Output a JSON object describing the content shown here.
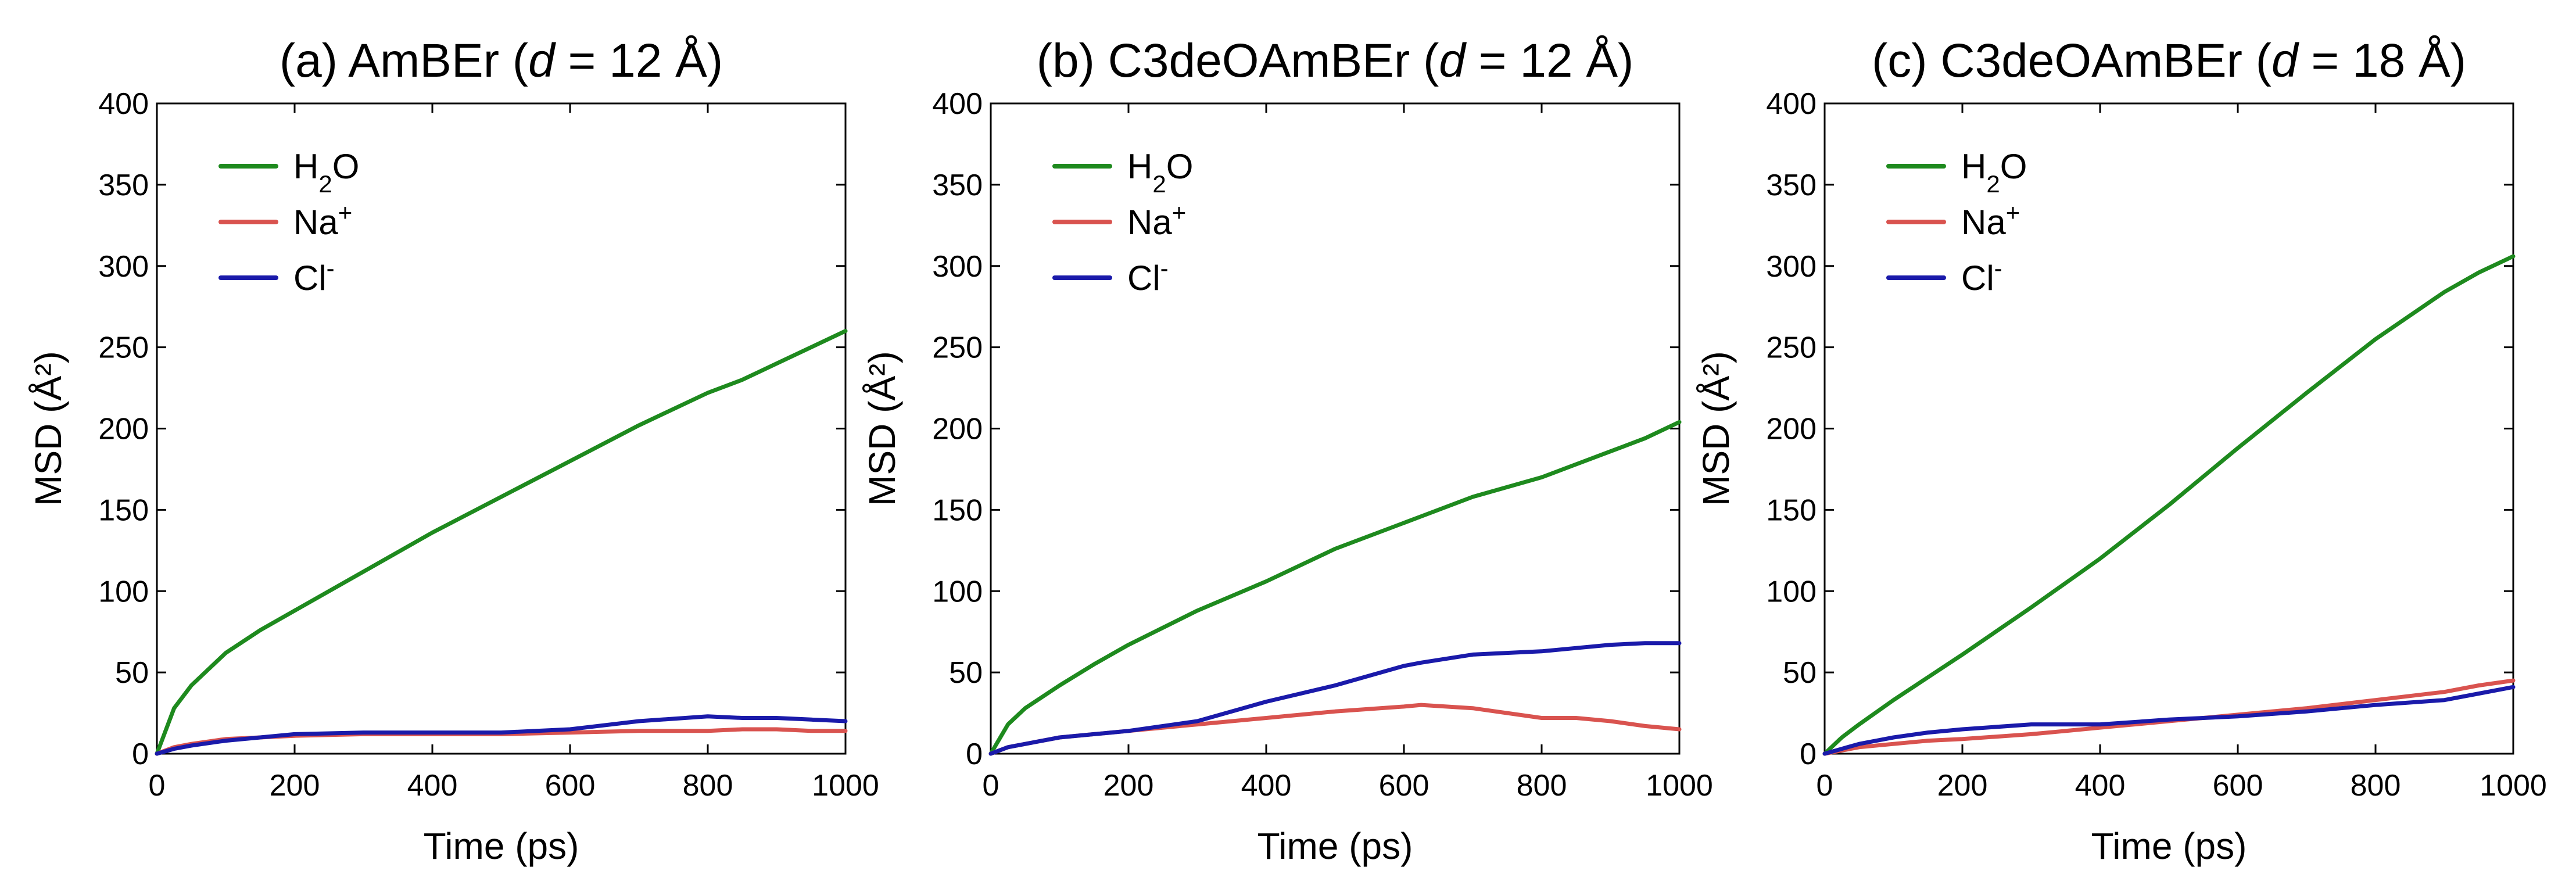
{
  "chart_data": [
    {
      "type": "line",
      "title_prefix": "(a) AmBEr (",
      "title_italic": "d",
      "title_suffix": " = 12 Å)",
      "xlabel": "Time (ps)",
      "ylabel": "MSD (Å²)",
      "xlim": [
        0,
        1000
      ],
      "ylim": [
        0,
        400
      ],
      "xticks": [
        0,
        200,
        400,
        600,
        800,
        1000
      ],
      "yticks": [
        0,
        50,
        100,
        150,
        200,
        250,
        300,
        350,
        400
      ],
      "legend_position": "top-left",
      "x": [
        0,
        25,
        50,
        100,
        150,
        200,
        300,
        400,
        500,
        600,
        700,
        800,
        850,
        900,
        950,
        1000
      ],
      "series": [
        {
          "name": "H₂O",
          "legend_main": "H",
          "legend_sub": "2",
          "legend_sup": "",
          "legend_tail": "O",
          "color": "#1e8a1e",
          "values": [
            0,
            28,
            42,
            62,
            76,
            88,
            112,
            136,
            158,
            180,
            202,
            222,
            230,
            240,
            250,
            260
          ]
        },
        {
          "name": "Na⁺",
          "legend_main": "Na",
          "legend_sub": "",
          "legend_sup": "+",
          "legend_tail": "",
          "color": "#d9534f",
          "values": [
            0,
            4,
            6,
            9,
            10,
            11,
            12,
            12,
            12,
            13,
            14,
            14,
            15,
            15,
            14,
            14
          ]
        },
        {
          "name": "Cl⁻",
          "legend_main": "Cl",
          "legend_sub": "",
          "legend_sup": "-",
          "legend_tail": "",
          "color": "#1a1aaa",
          "values": [
            0,
            3,
            5,
            8,
            10,
            12,
            13,
            13,
            13,
            15,
            20,
            23,
            22,
            22,
            21,
            20
          ]
        }
      ]
    },
    {
      "type": "line",
      "title_prefix": "(b) C3deOAmBEr (",
      "title_italic": "d",
      "title_suffix": " = 12 Å)",
      "xlabel": "Time (ps)",
      "ylabel": "MSD (Å²)",
      "xlim": [
        0,
        1000
      ],
      "ylim": [
        0,
        400
      ],
      "xticks": [
        0,
        200,
        400,
        600,
        800,
        1000
      ],
      "yticks": [
        0,
        50,
        100,
        150,
        200,
        250,
        300,
        350,
        400
      ],
      "legend_position": "top-left",
      "x": [
        0,
        25,
        50,
        100,
        150,
        200,
        300,
        400,
        500,
        600,
        625,
        700,
        800,
        850,
        900,
        950,
        1000
      ],
      "series": [
        {
          "name": "H₂O",
          "legend_main": "H",
          "legend_sub": "2",
          "legend_sup": "",
          "legend_tail": "O",
          "color": "#1e8a1e",
          "values": [
            0,
            18,
            28,
            42,
            55,
            67,
            88,
            106,
            126,
            142,
            146,
            158,
            170,
            178,
            186,
            194,
            204
          ]
        },
        {
          "name": "Na⁺",
          "legend_main": "Na",
          "legend_sub": "",
          "legend_sup": "+",
          "legend_tail": "",
          "color": "#d9534f",
          "values": [
            0,
            4,
            6,
            10,
            12,
            14,
            18,
            22,
            26,
            29,
            30,
            28,
            22,
            22,
            20,
            17,
            15
          ]
        },
        {
          "name": "Cl⁻",
          "legend_main": "Cl",
          "legend_sub": "",
          "legend_sup": "-",
          "legend_tail": "",
          "color": "#1a1aaa",
          "values": [
            0,
            4,
            6,
            10,
            12,
            14,
            20,
            32,
            42,
            54,
            56,
            61,
            63,
            65,
            67,
            68,
            68
          ]
        }
      ]
    },
    {
      "type": "line",
      "title_prefix": "(c) C3deOAmBEr (",
      "title_italic": "d",
      "title_suffix": " = 18 Å)",
      "xlabel": "Time (ps)",
      "ylabel": "MSD (Å²)",
      "xlim": [
        0,
        1000
      ],
      "ylim": [
        0,
        400
      ],
      "xticks": [
        0,
        200,
        400,
        600,
        800,
        1000
      ],
      "yticks": [
        0,
        50,
        100,
        150,
        200,
        250,
        300,
        350,
        400
      ],
      "legend_position": "top-left",
      "x": [
        0,
        25,
        50,
        100,
        150,
        200,
        300,
        400,
        500,
        600,
        700,
        800,
        900,
        950,
        1000
      ],
      "series": [
        {
          "name": "H₂O",
          "legend_main": "H",
          "legend_sub": "2",
          "legend_sup": "",
          "legend_tail": "O",
          "color": "#1e8a1e",
          "values": [
            0,
            10,
            18,
            33,
            47,
            61,
            90,
            120,
            153,
            188,
            222,
            255,
            284,
            296,
            306
          ]
        },
        {
          "name": "Na⁺",
          "legend_main": "Na",
          "legend_sub": "",
          "legend_sup": "+",
          "legend_tail": "",
          "color": "#d9534f",
          "values": [
            0,
            2,
            4,
            6,
            8,
            9,
            12,
            16,
            20,
            24,
            28,
            33,
            38,
            42,
            45
          ]
        },
        {
          "name": "Cl⁻",
          "legend_main": "Cl",
          "legend_sub": "",
          "legend_sup": "-",
          "legend_tail": "",
          "color": "#1a1aaa",
          "values": [
            0,
            3,
            6,
            10,
            13,
            15,
            18,
            18,
            21,
            23,
            26,
            30,
            33,
            37,
            41
          ]
        }
      ]
    }
  ]
}
